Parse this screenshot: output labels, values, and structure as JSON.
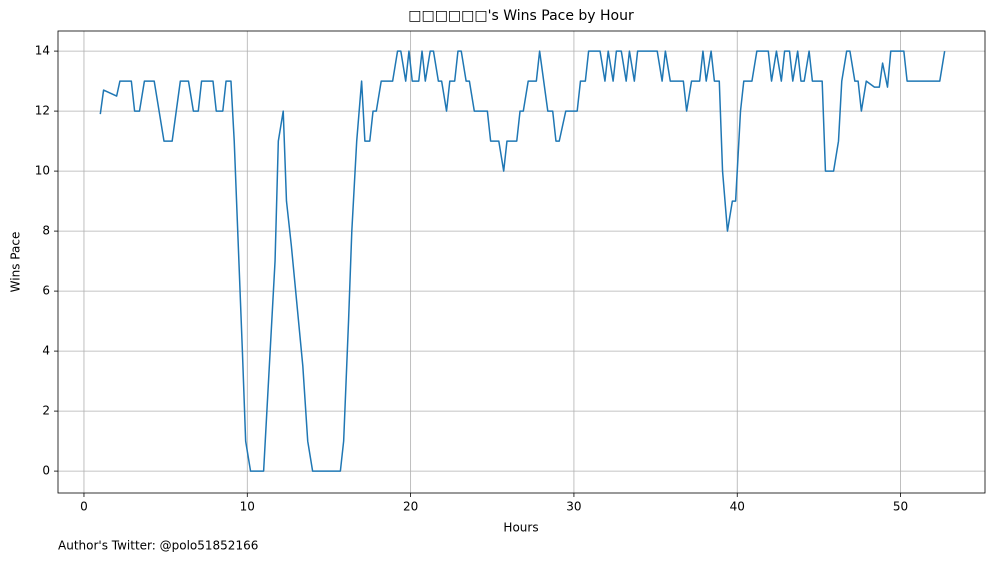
{
  "chart_data": {
    "type": "line",
    "title": "□□□□□□'s Wins Pace by Hour",
    "x_label": "Hours",
    "y_label": "Wins Pace",
    "footer": "Author's Twitter: @polo51852166",
    "xlim": [
      -1.59,
      55.17
    ],
    "ylim": [
      -0.73,
      14.67
    ],
    "xticks": [
      0,
      10,
      20,
      30,
      40,
      50
    ],
    "yticks": [
      0,
      2,
      4,
      6,
      8,
      10,
      12,
      14
    ],
    "grid": true,
    "x": [
      1.0,
      1.2,
      1.6,
      2.0,
      2.2,
      2.9,
      3.1,
      3.4,
      3.7,
      4.3,
      4.9,
      5.4,
      5.9,
      6.4,
      6.7,
      7.0,
      7.2,
      7.9,
      8.1,
      8.5,
      8.7,
      9.0,
      9.2,
      9.7,
      9.9,
      10.2,
      11.0,
      11.1,
      11.7,
      11.9,
      12.2,
      12.4,
      12.7,
      13.4,
      13.7,
      14.0,
      15.7,
      15.9,
      16.2,
      16.4,
      16.7,
      17.0,
      17.2,
      17.5,
      17.7,
      17.9,
      18.2,
      18.9,
      19.2,
      19.4,
      19.7,
      19.9,
      20.1,
      20.5,
      20.7,
      20.9,
      21.2,
      21.4,
      21.7,
      21.9,
      22.2,
      22.4,
      22.7,
      22.9,
      23.1,
      23.4,
      23.6,
      23.9,
      24.7,
      24.9,
      25.4,
      25.7,
      25.9,
      26.5,
      26.7,
      26.9,
      27.2,
      27.7,
      27.9,
      28.4,
      28.7,
      28.9,
      29.1,
      29.5,
      30.2,
      30.4,
      30.7,
      30.9,
      31.6,
      31.9,
      32.1,
      32.4,
      32.6,
      32.9,
      33.2,
      33.4,
      33.7,
      33.9,
      35.1,
      35.4,
      35.6,
      35.9,
      36.7,
      36.9,
      37.2,
      37.7,
      37.9,
      38.1,
      38.4,
      38.6,
      38.9,
      39.1,
      39.4,
      39.7,
      39.9,
      40.2,
      40.4,
      40.9,
      41.2,
      41.9,
      42.1,
      42.4,
      42.7,
      42.9,
      43.2,
      43.4,
      43.7,
      43.9,
      44.1,
      44.4,
      44.6,
      45.2,
      45.4,
      45.9,
      46.2,
      46.4,
      46.7,
      46.9,
      47.2,
      47.4,
      47.6,
      47.9,
      48.4,
      48.7,
      48.9,
      49.2,
      49.4,
      50.2,
      50.4,
      52.4,
      52.7
    ],
    "series": [
      {
        "name": "Wins Pace",
        "color": "#1f77b4",
        "values": [
          11.9,
          12.7,
          12.6,
          12.5,
          13,
          13,
          12,
          12,
          13,
          13,
          11,
          11,
          13,
          13,
          12,
          12,
          13,
          13,
          12,
          12,
          13,
          13,
          11,
          4,
          1,
          0,
          0,
          1,
          7,
          11,
          12,
          9,
          7.5,
          3.5,
          1,
          0,
          0,
          1,
          5,
          8,
          11,
          13,
          11,
          11,
          12,
          12,
          13,
          13,
          14,
          14,
          13,
          14,
          13,
          13,
          14,
          13,
          14,
          14,
          13,
          13,
          12,
          13,
          13,
          14,
          14,
          13,
          13,
          12,
          12,
          11,
          11,
          10,
          11,
          11,
          12,
          12,
          13,
          13,
          14,
          12,
          12,
          11,
          11,
          12,
          12,
          13,
          13,
          14,
          14,
          13,
          14,
          13,
          14,
          14,
          13,
          14,
          13,
          14,
          14,
          13,
          14,
          13,
          13,
          12,
          13,
          13,
          14,
          13,
          14,
          13,
          13,
          10,
          8,
          9,
          9,
          12,
          13,
          13,
          14,
          14,
          13,
          14,
          13,
          14,
          14,
          13,
          14,
          13,
          13,
          14,
          13,
          13,
          10,
          10,
          11,
          13,
          14,
          14,
          13,
          13,
          12,
          13,
          12.8,
          12.8,
          13.6,
          12.8,
          14,
          14,
          13,
          13,
          14
        ]
      }
    ]
  }
}
